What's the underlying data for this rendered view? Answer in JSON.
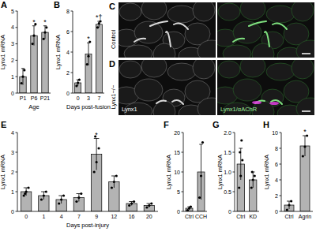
{
  "chart_data": [
    {
      "type": "bar",
      "title": "A",
      "y_label": "Lynx1 mRNA",
      "x_label": "Age",
      "categories": [
        "P1",
        "P6",
        "P21"
      ],
      "values": [
        1.0,
        3.5,
        3.7
      ],
      "errors": [
        0.5,
        0.6,
        0.4
      ],
      "points": [
        [
          0.6,
          1.0,
          1.4
        ],
        [
          3.0,
          3.5,
          4.2
        ],
        [
          3.3,
          3.7,
          4.0
        ]
      ],
      "annotations": [
        null,
        "*",
        "*"
      ],
      "color": "#b3b3b3",
      "ylim": [
        0,
        5
      ],
      "yticks": [
        0,
        1,
        2,
        3,
        4,
        5
      ]
    },
    {
      "type": "bar",
      "title": "B",
      "y_label": "Lynx1 mRNA",
      "x_label": "Days post-fusion",
      "categories": [
        "0",
        "3",
        "7"
      ],
      "values": [
        1.0,
        3.8,
        6.7
      ],
      "errors": [
        0.3,
        1.1,
        0.3
      ],
      "points": [
        [
          0.7,
          1.0,
          1.3
        ],
        [
          2.8,
          3.6,
          5.0
        ],
        [
          6.4,
          6.8,
          7.0
        ]
      ],
      "annotations": [
        null,
        "*",
        "*†"
      ],
      "color": "#b3b3b3",
      "ylim": [
        0,
        8
      ],
      "yticks": [
        0,
        2,
        4,
        6,
        8
      ]
    },
    {
      "type": "bar",
      "title": "E",
      "y_label": "Lynx1 mRNA",
      "x_label": "Days post-injury",
      "categories": [
        "0",
        "1",
        "4",
        "7",
        "9",
        "12",
        "16",
        "20"
      ],
      "values": [
        1.0,
        0.8,
        0.6,
        0.7,
        2.9,
        1.5,
        0.4,
        0.3
      ],
      "errors": [
        0.2,
        0.2,
        0.2,
        0.2,
        0.8,
        0.3,
        0.1,
        0.1
      ],
      "points": [
        [
          0.8,
          1.0,
          1.2,
          0.9
        ],
        [
          0.6,
          0.8,
          1.0
        ],
        [
          0.4,
          0.6,
          0.8
        ],
        [
          0.5,
          0.7,
          0.9
        ],
        [
          2.0,
          2.5,
          3.2,
          3.8
        ],
        [
          1.2,
          1.5,
          1.8
        ],
        [
          0.3,
          0.4,
          0.5
        ],
        [
          0.2,
          0.3,
          0.4
        ]
      ],
      "annotations": [
        null,
        null,
        null,
        null,
        "*",
        null,
        null,
        null
      ],
      "color": "#b3b3b3",
      "ylim": [
        0,
        4
      ],
      "yticks": [
        0,
        1,
        2,
        3,
        4
      ]
    },
    {
      "type": "bar",
      "title": "F",
      "y_label": "Lynx1 mRNA",
      "categories": [
        "Ctrl",
        "CCH"
      ],
      "values": [
        0.8,
        10
      ],
      "errors": [
        0.4,
        7
      ],
      "points": [
        [
          0.3,
          0.8,
          1.2
        ],
        [
          3.5,
          9.0,
          17.5
        ]
      ],
      "annotations": [
        null,
        null
      ],
      "color": "#b3b3b3",
      "ylim": [
        0,
        20
      ],
      "yticks": [
        0,
        5,
        10,
        15,
        20
      ]
    },
    {
      "type": "bar",
      "title": "G",
      "y_label": "Lynx1 mRNA",
      "categories": [
        "Ctrl",
        "KD"
      ],
      "values": [
        1.2,
        0.8
      ],
      "errors": [
        0.4,
        0.2
      ],
      "points": [
        [
          0.6,
          0.9,
          1.3,
          1.5,
          1.8
        ],
        [
          0.6,
          0.8,
          0.9,
          1.0
        ]
      ],
      "annotations": [
        null,
        null
      ],
      "color": "#b3b3b3",
      "ylim": [
        0,
        2
      ],
      "yticks": [
        0,
        0.5,
        {
          "value": 1,
          "label": "1.0"
        },
        1.5,
        {
          "value": 2,
          "label": "2.0"
        }
      ]
    },
    {
      "type": "bar",
      "title": "H",
      "y_label": "Lynx1 mRNA",
      "categories": [
        "Ctrl",
        "Agrin"
      ],
      "values": [
        0.8,
        8.3
      ],
      "errors": [
        0.5,
        1.3
      ],
      "points": [
        [
          0.2,
          0.8,
          1.3
        ],
        [
          7.0,
          8.2,
          9.6
        ]
      ],
      "annotations": [
        null,
        "*"
      ],
      "color": "#b3b3b3",
      "ylim": [
        0,
        10
      ],
      "yticks": [
        0,
        2,
        4,
        6,
        8,
        10
      ]
    }
  ],
  "images": {
    "rows": [
      {
        "label": "C",
        "row_label": "Control"
      },
      {
        "label": "D",
        "row_label": "Lynx1−/−"
      }
    ],
    "channels": [
      "Lynx1",
      "Lynx1/αAChR"
    ]
  }
}
